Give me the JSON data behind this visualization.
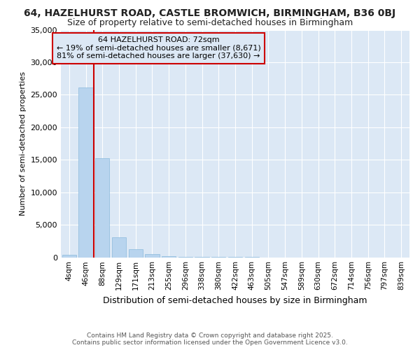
{
  "title": "64, HAZELHURST ROAD, CASTLE BROMWICH, BIRMINGHAM, B36 0BJ",
  "subtitle": "Size of property relative to semi-detached houses in Birmingham",
  "xlabel": "Distribution of semi-detached houses by size in Birmingham",
  "ylabel": "Number of semi-detached properties",
  "bin_labels": [
    "4sqm",
    "46sqm",
    "88sqm",
    "129sqm",
    "171sqm",
    "213sqm",
    "255sqm",
    "296sqm",
    "338sqm",
    "380sqm",
    "422sqm",
    "463sqm",
    "505sqm",
    "547sqm",
    "589sqm",
    "630sqm",
    "672sqm",
    "714sqm",
    "756sqm",
    "797sqm",
    "839sqm"
  ],
  "bar_values": [
    400,
    26100,
    15200,
    3100,
    1200,
    500,
    200,
    50,
    20,
    8,
    3,
    1,
    0,
    0,
    0,
    0,
    0,
    0,
    0,
    0,
    0
  ],
  "bar_color": "#b8d4ee",
  "bar_edge_color": "#8abadc",
  "red_line_x": 1.5,
  "annotation_title": "64 HAZELHURST ROAD: 72sqm",
  "annotation_line1": "← 19% of semi-detached houses are smaller (8,671)",
  "annotation_line2": "81% of semi-detached houses are larger (37,630) →",
  "annotation_color": "#cc0000",
  "ylim": [
    0,
    35000
  ],
  "yticks": [
    0,
    5000,
    10000,
    15000,
    20000,
    25000,
    30000,
    35000
  ],
  "footer1": "Contains HM Land Registry data © Crown copyright and database right 2025.",
  "footer2": "Contains public sector information licensed under the Open Government Licence v3.0.",
  "plot_bg_color": "#dce8f5",
  "fig_bg_color": "#ffffff",
  "grid_color": "#ffffff",
  "title_fontsize": 10,
  "subtitle_fontsize": 9,
  "ann_fontsize": 8
}
